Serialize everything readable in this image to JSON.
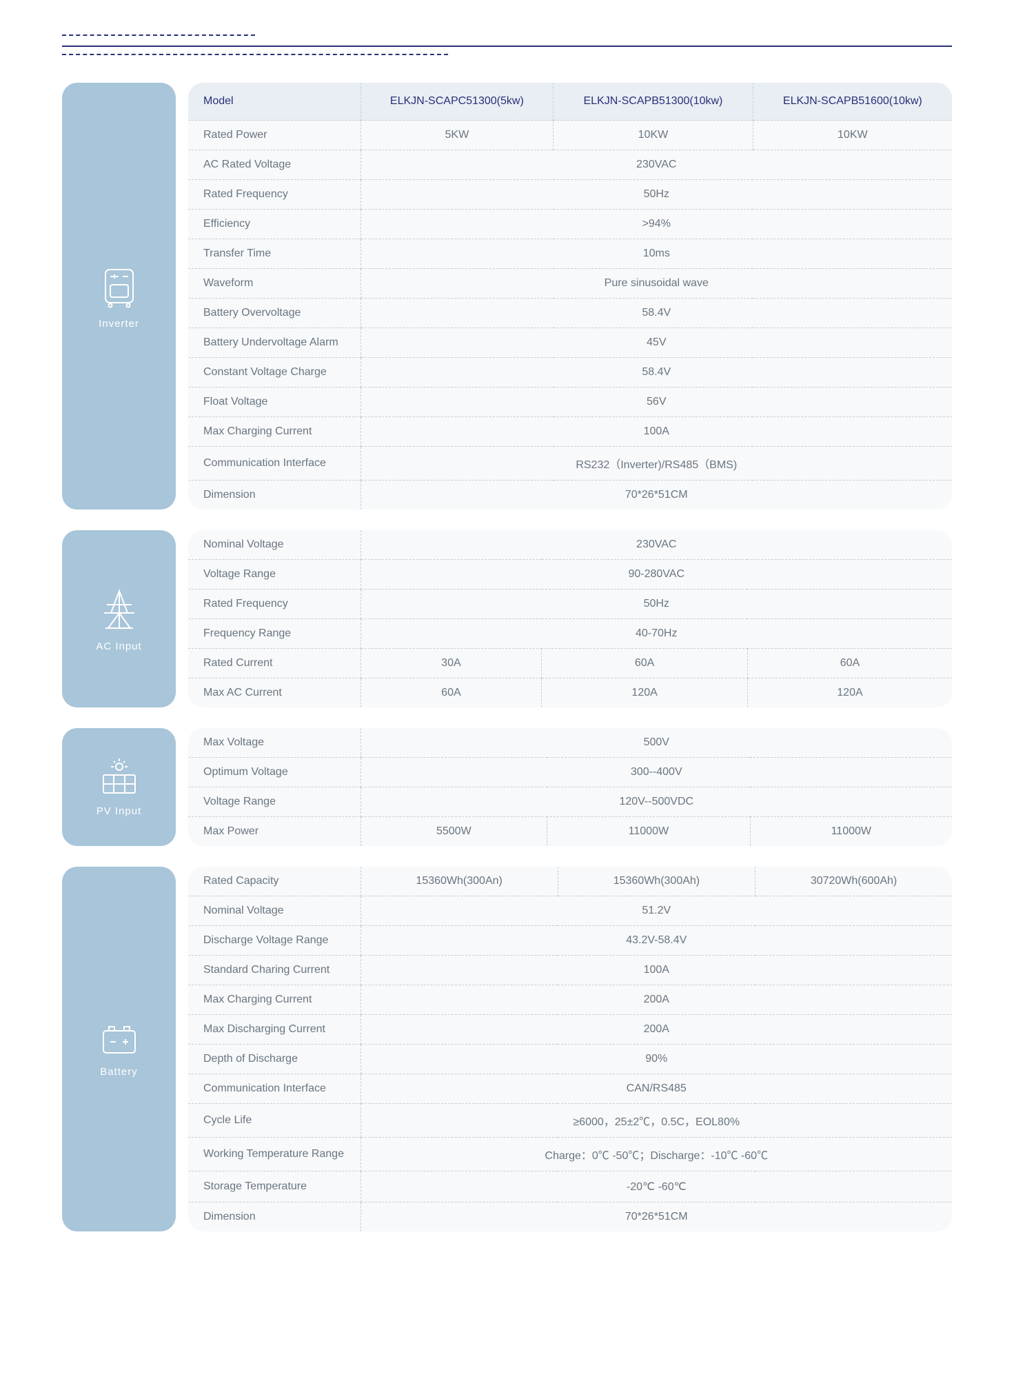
{
  "models_header_label": "Model",
  "models": [
    "ELKJN-SCAPC51300(5kw)",
    "ELKJN-SCAPB51300(10kw)",
    "ELKJN-SCAPB51600(10kw)"
  ],
  "colors": {
    "card_bg": "#a8c5d9",
    "table_bg": "#f7f9fa",
    "header_bg": "#e8eef3",
    "dash_border": "#c5ced6",
    "accent": "#2a2f7a",
    "text": "#6a7580",
    "icon_stroke": "#ffffff"
  },
  "sections": [
    {
      "id": "inverter",
      "label": "Inverter",
      "icon": "inverter-icon",
      "show_header": true,
      "rows": [
        {
          "label": "Rated Power",
          "vals": [
            "5KW",
            "10KW",
            "10KW"
          ]
        },
        {
          "label": "AC Rated Voltage",
          "span": "230VAC"
        },
        {
          "label": "Rated Frequency",
          "span": "50Hz"
        },
        {
          "label": "Efficiency",
          "span": ">94%"
        },
        {
          "label": "Transfer Time",
          "span": "10ms"
        },
        {
          "label": "Waveform",
          "span": "Pure sinusoidal wave"
        },
        {
          "label": "Battery Overvoltage",
          "span": "58.4V"
        },
        {
          "label": "Battery Undervoltage Alarm",
          "span": "45V"
        },
        {
          "label": "Constant Voltage Charge",
          "span": "58.4V"
        },
        {
          "label": "Float Voltage",
          "span": "56V"
        },
        {
          "label": "Max Charging Current",
          "span": "100A"
        },
        {
          "label": "Communication Interface",
          "span": "RS232（Inverter)/RS485（BMS)"
        },
        {
          "label": "Dimension",
          "span": "70*26*51CM"
        }
      ]
    },
    {
      "id": "acinput",
      "label": "AC Input",
      "icon": "ac-input-icon",
      "show_header": false,
      "rows": [
        {
          "label": "Nominal Voltage",
          "span": "230VAC"
        },
        {
          "label": "Voltage Range",
          "span": "90-280VAC"
        },
        {
          "label": "Rated Frequency",
          "span": "50Hz"
        },
        {
          "label": "Frequency Range",
          "span": "40-70Hz"
        },
        {
          "label": "Rated Current",
          "vals": [
            "30A",
            "60A",
            "60A"
          ]
        },
        {
          "label": "Max AC Current",
          "vals": [
            "60A",
            "120A",
            "120A"
          ]
        }
      ]
    },
    {
      "id": "pvinput",
      "label": "PV Input",
      "icon": "pv-input-icon",
      "show_header": false,
      "rows": [
        {
          "label": "Max Voltage",
          "span": "500V"
        },
        {
          "label": "Optimum Voltage",
          "span": "300--400V"
        },
        {
          "label": "Voltage Range",
          "span": "120V--500VDC"
        },
        {
          "label": "Max Power",
          "vals": [
            "5500W",
            "11000W",
            "11000W"
          ]
        }
      ]
    },
    {
      "id": "battery",
      "label": "Battery",
      "icon": "battery-icon",
      "show_header": false,
      "rows": [
        {
          "label": "Rated Capacity",
          "vals": [
            "15360Wh(300An)",
            "15360Wh(300Ah)",
            "30720Wh(600Ah)"
          ]
        },
        {
          "label": "Nominal Voltage",
          "span": "51.2V"
        },
        {
          "label": "Discharge Voltage Range",
          "span": "43.2V-58.4V"
        },
        {
          "label": "Standard Charing Current",
          "span": "100A"
        },
        {
          "label": "Max Charging Current",
          "span": "200A"
        },
        {
          "label": "Max Discharging Current",
          "span": "200A"
        },
        {
          "label": "Depth of Discharge",
          "span": "90%"
        },
        {
          "label": "Communication Interface",
          "span": "CAN/RS485"
        },
        {
          "label": "Cycle Life",
          "span": "≥6000，25±2℃，0.5C，EOL80%"
        },
        {
          "label": "Working Temperature Range",
          "span": "Charge：0℃ -50℃；Discharge：-10℃ -60℃"
        },
        {
          "label": "Storage Temperature",
          "span": "-20℃ -60℃"
        },
        {
          "label": "Dimension",
          "span": "70*26*51CM"
        }
      ]
    }
  ]
}
